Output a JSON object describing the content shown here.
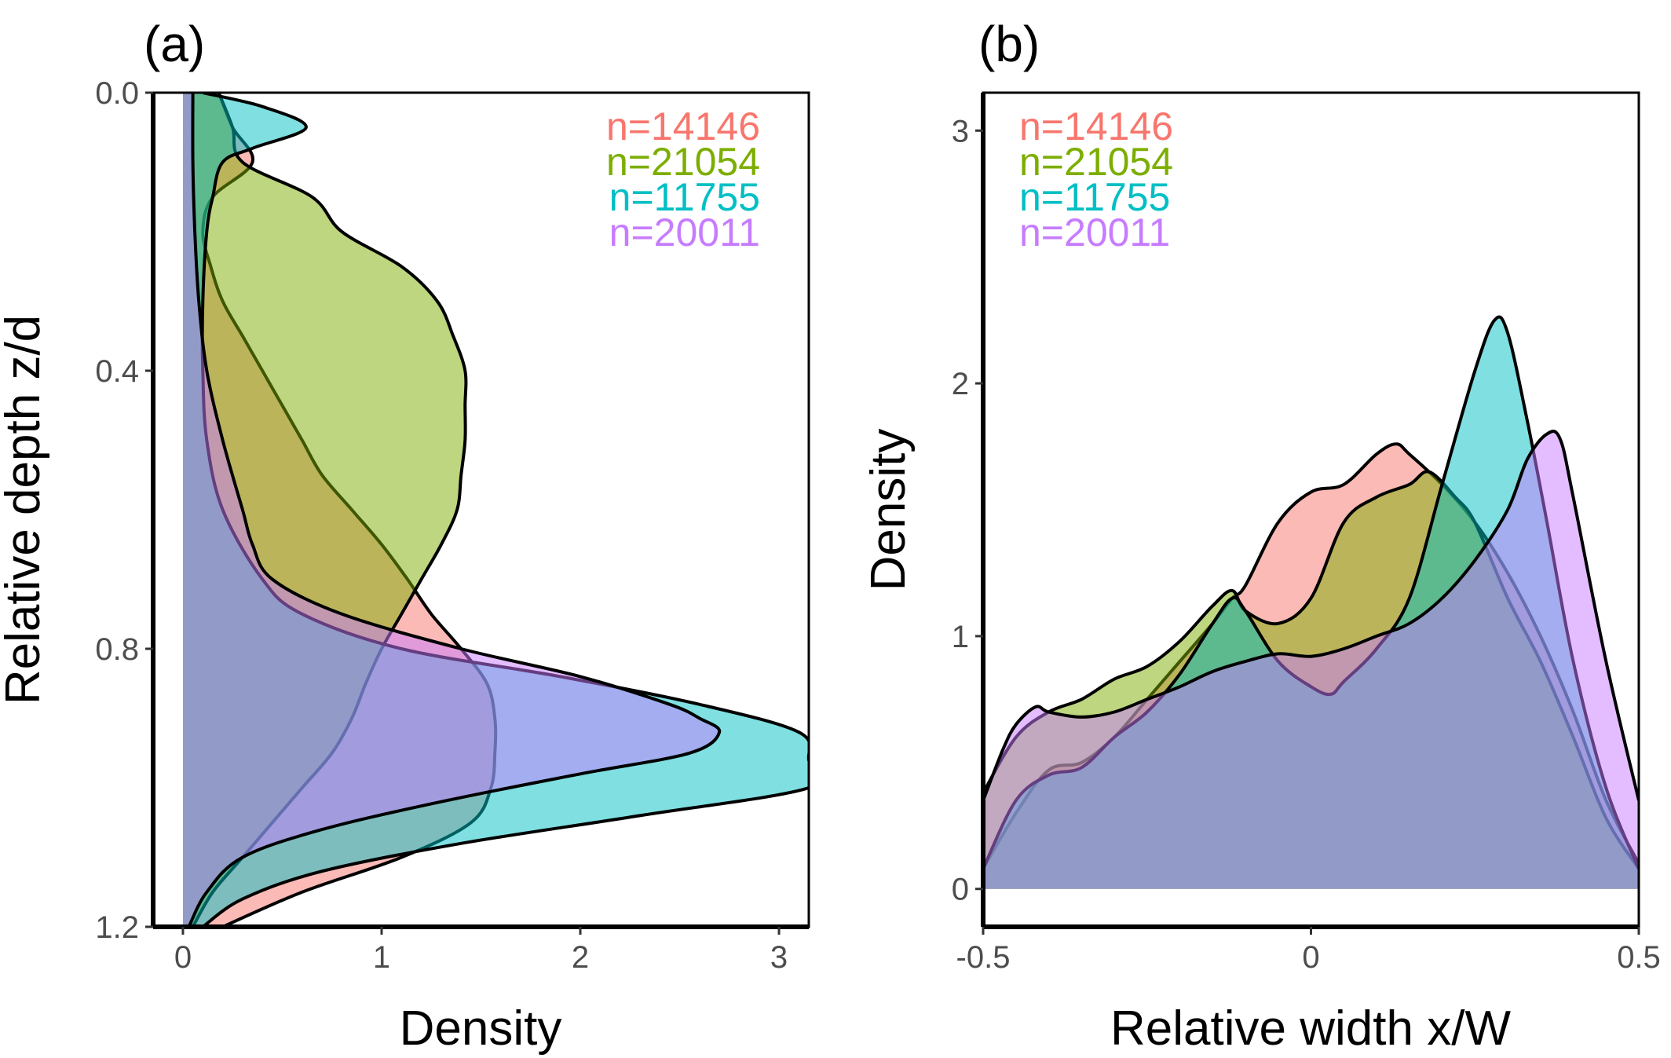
{
  "colors": {
    "series_1": "#F8766D",
    "series_2": "#7CAE00",
    "series_3": "#00BFC4",
    "series_4": "#C77CFF",
    "outline": "#000000",
    "tick_text": "#4d4d4d"
  },
  "chart_data": [
    {
      "panel": "(a)",
      "type": "area",
      "orientation": "density-vs-depth",
      "xlabel": "Density",
      "ylabel": "Relative depth z/d",
      "xlim": [
        -0.15,
        3.15
      ],
      "ylim": [
        1.2,
        0.0
      ],
      "xticks": [
        "0",
        "1",
        "2",
        "3"
      ],
      "yticks": [
        "0.0",
        "0.4",
        "0.8",
        "1.2"
      ],
      "legend_position": "top-right",
      "legend": [
        "n=14146",
        "n=21054",
        "n=11755",
        "n=20011"
      ],
      "series": [
        {
          "name": "n=14146",
          "color": "#F8766D",
          "z": [
            0.0,
            0.05,
            0.1,
            0.15,
            0.2,
            0.25,
            0.3,
            0.35,
            0.4,
            0.45,
            0.5,
            0.55,
            0.6,
            0.65,
            0.7,
            0.75,
            0.8,
            0.85,
            0.9,
            0.95,
            1.0,
            1.05,
            1.1,
            1.15,
            1.2
          ],
          "density": [
            0.18,
            0.25,
            0.35,
            0.15,
            0.1,
            0.14,
            0.2,
            0.3,
            0.4,
            0.5,
            0.6,
            0.7,
            0.85,
            1.0,
            1.13,
            1.25,
            1.4,
            1.53,
            1.57,
            1.57,
            1.55,
            1.45,
            1.1,
            0.6,
            0.2
          ]
        },
        {
          "name": "n=21054",
          "color": "#7CAE00",
          "z": [
            0.0,
            0.05,
            0.1,
            0.15,
            0.2,
            0.25,
            0.3,
            0.35,
            0.4,
            0.45,
            0.5,
            0.55,
            0.6,
            0.65,
            0.7,
            0.75,
            0.8,
            0.85,
            0.9,
            0.95,
            1.0,
            1.05,
            1.1,
            1.15,
            1.2
          ],
          "density": [
            0.18,
            0.25,
            0.3,
            0.65,
            0.8,
            1.1,
            1.28,
            1.36,
            1.42,
            1.42,
            1.42,
            1.4,
            1.38,
            1.3,
            1.2,
            1.1,
            1.0,
            0.92,
            0.85,
            0.75,
            0.6,
            0.45,
            0.3,
            0.15,
            0.05
          ]
        },
        {
          "name": "n=11755",
          "color": "#00BFC4",
          "z": [
            0.0,
            0.02,
            0.05,
            0.08,
            0.1,
            0.15,
            0.2,
            0.3,
            0.4,
            0.5,
            0.6,
            0.7,
            0.75,
            0.8,
            0.84,
            0.88,
            0.92,
            0.96,
            1.0,
            1.04,
            1.08,
            1.12,
            1.16,
            1.2
          ],
          "density": [
            0.1,
            0.4,
            0.62,
            0.35,
            0.2,
            0.15,
            0.12,
            0.1,
            0.1,
            0.12,
            0.2,
            0.4,
            0.6,
            1.1,
            1.9,
            2.6,
            3.1,
            3.15,
            3.15,
            2.3,
            1.4,
            0.7,
            0.3,
            0.1
          ]
        },
        {
          "name": "n=20011",
          "color": "#C77CFF",
          "z": [
            0.0,
            0.1,
            0.2,
            0.3,
            0.4,
            0.5,
            0.6,
            0.65,
            0.7,
            0.75,
            0.8,
            0.84,
            0.88,
            0.9,
            0.92,
            0.95,
            0.98,
            1.02,
            1.06,
            1.1,
            1.15,
            1.2
          ],
          "density": [
            0.05,
            0.05,
            0.06,
            0.08,
            0.12,
            0.2,
            0.3,
            0.35,
            0.45,
            0.8,
            1.4,
            2.0,
            2.45,
            2.6,
            2.7,
            2.55,
            2.0,
            1.3,
            0.7,
            0.3,
            0.12,
            0.03
          ]
        }
      ]
    },
    {
      "panel": "(b)",
      "type": "area",
      "xlabel": "Relative width x/W",
      "ylabel": "Density",
      "xlim": [
        -0.5,
        0.5
      ],
      "ylim": [
        -0.15,
        3.15
      ],
      "xticks": [
        "-0.5",
        "0",
        "0.5"
      ],
      "yticks": [
        "0",
        "1",
        "2",
        "3"
      ],
      "legend_position": "top-left",
      "legend": [
        "n=14146",
        "n=21054",
        "n=11755",
        "n=20011"
      ],
      "series": [
        {
          "name": "n=14146",
          "color": "#F8766D",
          "x": [
            -0.5,
            -0.45,
            -0.4,
            -0.35,
            -0.3,
            -0.25,
            -0.2,
            -0.15,
            -0.12,
            -0.1,
            -0.05,
            0.0,
            0.05,
            0.1,
            0.13,
            0.15,
            0.2,
            0.25,
            0.3,
            0.35,
            0.4,
            0.45,
            0.5
          ],
          "y": [
            0.08,
            0.3,
            0.47,
            0.5,
            0.6,
            0.75,
            0.9,
            1.05,
            1.15,
            1.2,
            1.45,
            1.57,
            1.6,
            1.72,
            1.76,
            1.72,
            1.6,
            1.45,
            1.25,
            1.0,
            0.7,
            0.35,
            0.1
          ]
        },
        {
          "name": "n=21054",
          "color": "#7CAE00",
          "x": [
            -0.5,
            -0.45,
            -0.4,
            -0.35,
            -0.3,
            -0.25,
            -0.2,
            -0.15,
            -0.12,
            -0.1,
            -0.05,
            0.0,
            0.05,
            0.1,
            0.15,
            0.18,
            0.22,
            0.25,
            0.3,
            0.35,
            0.4,
            0.45,
            0.5
          ],
          "y": [
            0.38,
            0.6,
            0.7,
            0.75,
            0.83,
            0.88,
            0.98,
            1.12,
            1.18,
            1.1,
            1.05,
            1.15,
            1.45,
            1.55,
            1.6,
            1.65,
            1.55,
            1.45,
            1.15,
            0.9,
            0.6,
            0.28,
            0.08
          ]
        },
        {
          "name": "n=11755",
          "color": "#00BFC4",
          "x": [
            -0.5,
            -0.45,
            -0.4,
            -0.35,
            -0.3,
            -0.25,
            -0.2,
            -0.15,
            -0.12,
            -0.1,
            -0.05,
            0.0,
            0.03,
            0.05,
            0.1,
            0.15,
            0.2,
            0.25,
            0.28,
            0.3,
            0.33,
            0.36,
            0.4,
            0.45,
            0.5
          ],
          "y": [
            0.08,
            0.35,
            0.45,
            0.48,
            0.6,
            0.7,
            0.85,
            1.05,
            1.15,
            1.1,
            0.9,
            0.8,
            0.77,
            0.82,
            0.95,
            1.15,
            1.6,
            2.05,
            2.25,
            2.2,
            1.85,
            1.45,
            0.9,
            0.4,
            0.08
          ]
        },
        {
          "name": "n=20011",
          "color": "#C77CFF",
          "x": [
            -0.5,
            -0.47,
            -0.45,
            -0.42,
            -0.4,
            -0.35,
            -0.3,
            -0.25,
            -0.2,
            -0.15,
            -0.1,
            -0.05,
            0.0,
            0.05,
            0.1,
            0.15,
            0.2,
            0.25,
            0.3,
            0.33,
            0.36,
            0.38,
            0.4,
            0.45,
            0.5
          ],
          "y": [
            0.35,
            0.55,
            0.65,
            0.72,
            0.7,
            0.68,
            0.7,
            0.75,
            0.8,
            0.86,
            0.9,
            0.93,
            0.92,
            0.95,
            1.0,
            1.05,
            1.15,
            1.3,
            1.5,
            1.7,
            1.8,
            1.78,
            1.55,
            0.9,
            0.35
          ]
        }
      ]
    }
  ]
}
